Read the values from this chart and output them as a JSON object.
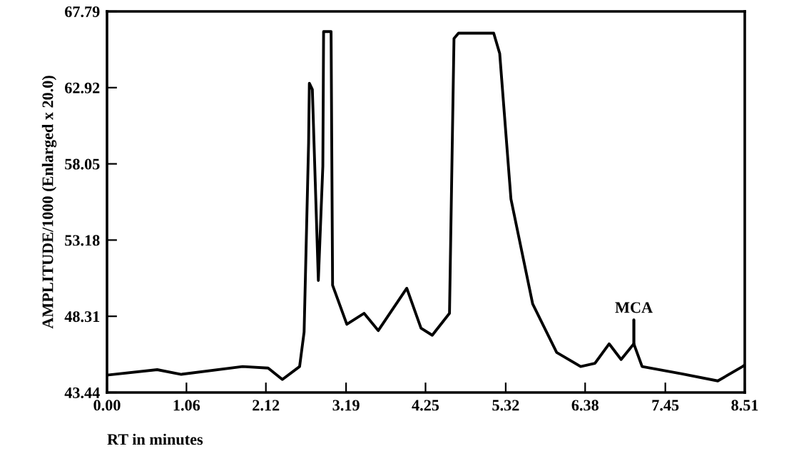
{
  "chart_data": {
    "type": "line",
    "xlabel": "RT in minutes",
    "ylabel": "AMPLITUDE/1000 (Enlarged x 20.0)",
    "x": [
      0,
      0.67,
      0.99,
      1.81,
      2.15,
      2.34,
      2.57,
      2.63,
      2.69,
      2.7,
      2.74,
      2.82,
      2.88,
      2.89,
      2.99,
      3.01,
      3.2,
      3.43,
      3.62,
      4.0,
      4.19,
      4.34,
      4.57,
      4.63,
      4.69,
      5.16,
      5.24,
      5.39,
      5.68,
      6.0,
      6.32,
      6.51,
      6.7,
      6.86,
      7.03,
      7.14,
      7.66,
      8.15,
      8.48,
      8.51
    ],
    "series": [
      {
        "color": "#000000",
        "values": [
          44.55,
          44.9,
          44.6,
          45.1,
          45.0,
          44.27,
          45.1,
          47.3,
          59.4,
          63.2,
          62.8,
          50.6,
          57.9,
          66.5,
          66.5,
          50.3,
          47.8,
          48.5,
          47.4,
          50.1,
          47.55,
          47.1,
          48.5,
          66.06,
          66.4,
          66.4,
          65.1,
          55.8,
          49.1,
          46.0,
          45.1,
          45.3,
          46.55,
          45.55,
          46.55,
          45.1,
          44.64,
          44.18,
          45.1,
          45.2
        ]
      }
    ],
    "annotations": [
      {
        "text": "MCA",
        "x": 7.03,
        "y": 46.55
      }
    ],
    "xlim": [
      0,
      8.51
    ],
    "ylim": [
      43.44,
      67.79
    ],
    "xticks": [
      {
        "value": 0,
        "label": "0.00"
      },
      1.06,
      2.12,
      3.19,
      4.25,
      5.32,
      6.38,
      7.45,
      8.51
    ],
    "yticks": [
      43.44,
      48.31,
      53.18,
      58.05,
      62.92,
      67.79
    ],
    "grid": false,
    "legend": false,
    "marker": "none",
    "line_style": "solid"
  }
}
